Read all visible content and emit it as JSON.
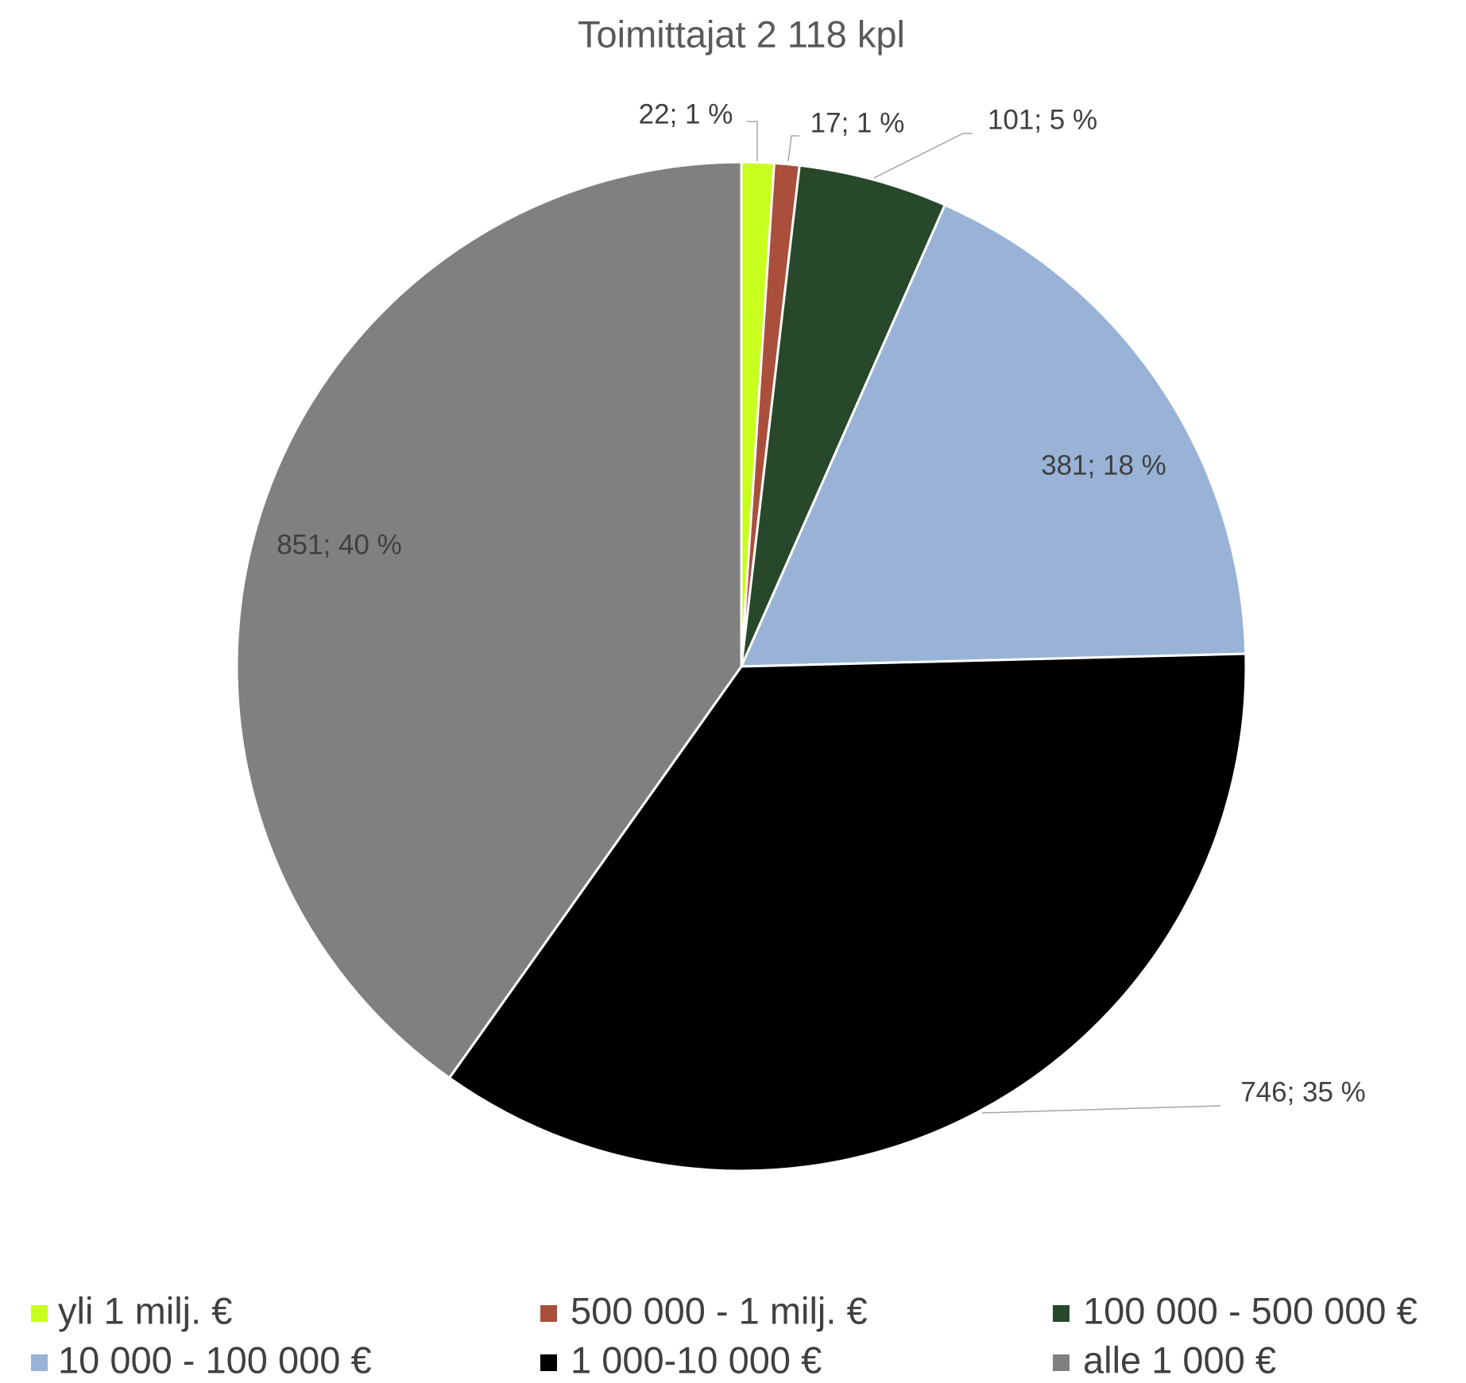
{
  "chart_data": {
    "type": "pie",
    "title": "Toimittajat 2 118 kpl",
    "categories": [
      "yli 1 milj. €",
      "500 000 - 1 milj. €",
      "100 000 - 500 000 €",
      "10 000 - 100 000 €",
      "1 000-10 000 €",
      "alle 1 000 €"
    ],
    "values": [
      22,
      17,
      101,
      381,
      746,
      851
    ],
    "value_labels": [
      "22; 1 %",
      "17; 1 %",
      "101; 5 %",
      "381; 18 %",
      "746; 35 %",
      "851; 40 %"
    ],
    "colors": [
      "#c8ff1e",
      "#a94f3c",
      "#27482a",
      "#98b3d6",
      "#000000",
      "#808080"
    ],
    "legend": "bottom"
  }
}
